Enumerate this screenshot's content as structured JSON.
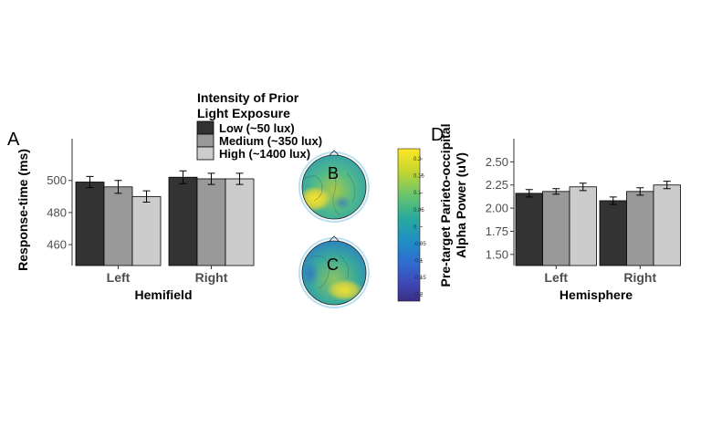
{
  "panel_labels": {
    "a": "A",
    "b": "B",
    "c": "C",
    "d": "D"
  },
  "legend": {
    "title_line1": "Intensity of Prior",
    "title_line2": "Light Exposure",
    "items": [
      {
        "label": "Low (~50 lux)",
        "color": "#333333"
      },
      {
        "label": "Medium (~350 lux)",
        "color": "#999999"
      },
      {
        "label": "High (~1400 lux)",
        "color": "#cccccc"
      }
    ]
  },
  "colorbar": {
    "ticks": [
      "0.2",
      "0.15",
      "0.1",
      "0.05",
      "0",
      "-0.05",
      "-0.1",
      "-0.15",
      "-0.2"
    ],
    "range": [
      -0.22,
      0.23
    ],
    "colors": [
      "#fde725",
      "#c8d62e",
      "#6cc56c",
      "#2aab9a",
      "#1f90c4",
      "#2f6ccf",
      "#3f49b6",
      "#3b2e83"
    ]
  },
  "chart_data": [
    {
      "type": "bar",
      "panel": "A",
      "categories": [
        "Left",
        "Right"
      ],
      "series": [
        {
          "name": "Low (~50 lux)",
          "values": [
            499,
            502
          ],
          "errors": [
            3.5,
            4.0
          ]
        },
        {
          "name": "Medium (~350 lux)",
          "values": [
            496,
            501
          ],
          "errors": [
            4.0,
            3.5
          ]
        },
        {
          "name": "High (~1400 lux)",
          "values": [
            490,
            501
          ],
          "errors": [
            3.5,
            3.5
          ]
        }
      ],
      "xlabel": "Hemifield",
      "ylabel": "Response-time (ms)",
      "ylim": [
        447,
        526
      ],
      "yticks": [
        460,
        480,
        500
      ],
      "grid": false
    },
    {
      "type": "bar",
      "panel": "D",
      "categories": [
        "Left",
        "Right"
      ],
      "series": [
        {
          "name": "Low (~50 lux)",
          "values": [
            2.16,
            2.08
          ],
          "errors": [
            0.04,
            0.04
          ]
        },
        {
          "name": "Medium (~350 lux)",
          "values": [
            2.18,
            2.18
          ],
          "errors": [
            0.03,
            0.04
          ]
        },
        {
          "name": "High (~1400 lux)",
          "values": [
            2.23,
            2.25
          ],
          "errors": [
            0.04,
            0.04
          ]
        }
      ],
      "xlabel": "Hemisphere",
      "ylabel_line1": "Pre-target Parieto-occipital",
      "ylabel_line2": "Alpha Power (uV)",
      "ylim": [
        1.38,
        2.75
      ],
      "yticks": [
        "1.50",
        "1.75",
        "2.00",
        "2.25",
        "2.50"
      ],
      "grid": false
    }
  ]
}
